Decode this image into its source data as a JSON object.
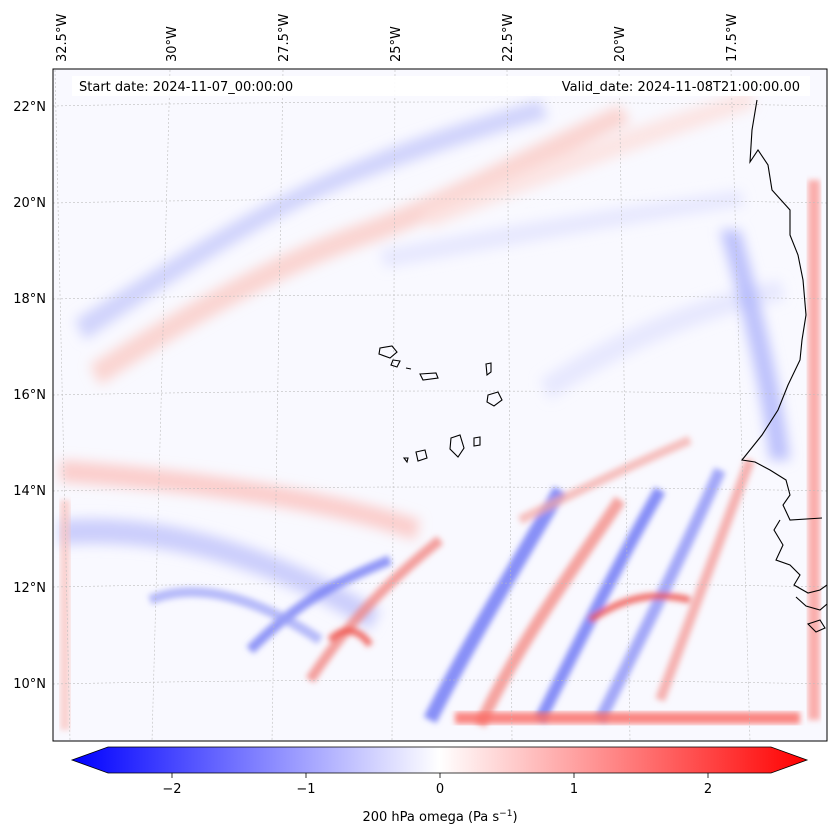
{
  "map": {
    "lon_ticks": [
      "32.5°W",
      "30°W",
      "27.5°W",
      "25°W",
      "22.5°W",
      "20°W",
      "17.5°W"
    ],
    "lat_ticks": [
      "22°N",
      "20°N",
      "18°N",
      "16°N",
      "14°N",
      "12°N",
      "10°N"
    ],
    "start_date": "Start date: 2024-11-07_00:00:00",
    "valid_date": "Valid_date: 2024-11-08T21:00:00.00",
    "colors": {
      "negative": "#0000ff",
      "zero": "#ffffff",
      "positive": "#ff0000",
      "coast": "#000000",
      "grid": "#bdbdbd"
    },
    "field_features": [
      {
        "sign": "negative",
        "desc": "ascending band"
      },
      {
        "sign": "positive",
        "desc": "descending band"
      }
    ]
  },
  "colorbar": {
    "ticks": [
      "−2",
      "−1",
      "0",
      "1",
      "2"
    ],
    "tick_values": [
      -2,
      -1,
      0,
      1,
      2
    ],
    "range": [
      -2.5,
      2.5
    ],
    "label": "200 hPa omega (Pa s",
    "label_sup": "−1",
    "label_close": ")"
  }
}
